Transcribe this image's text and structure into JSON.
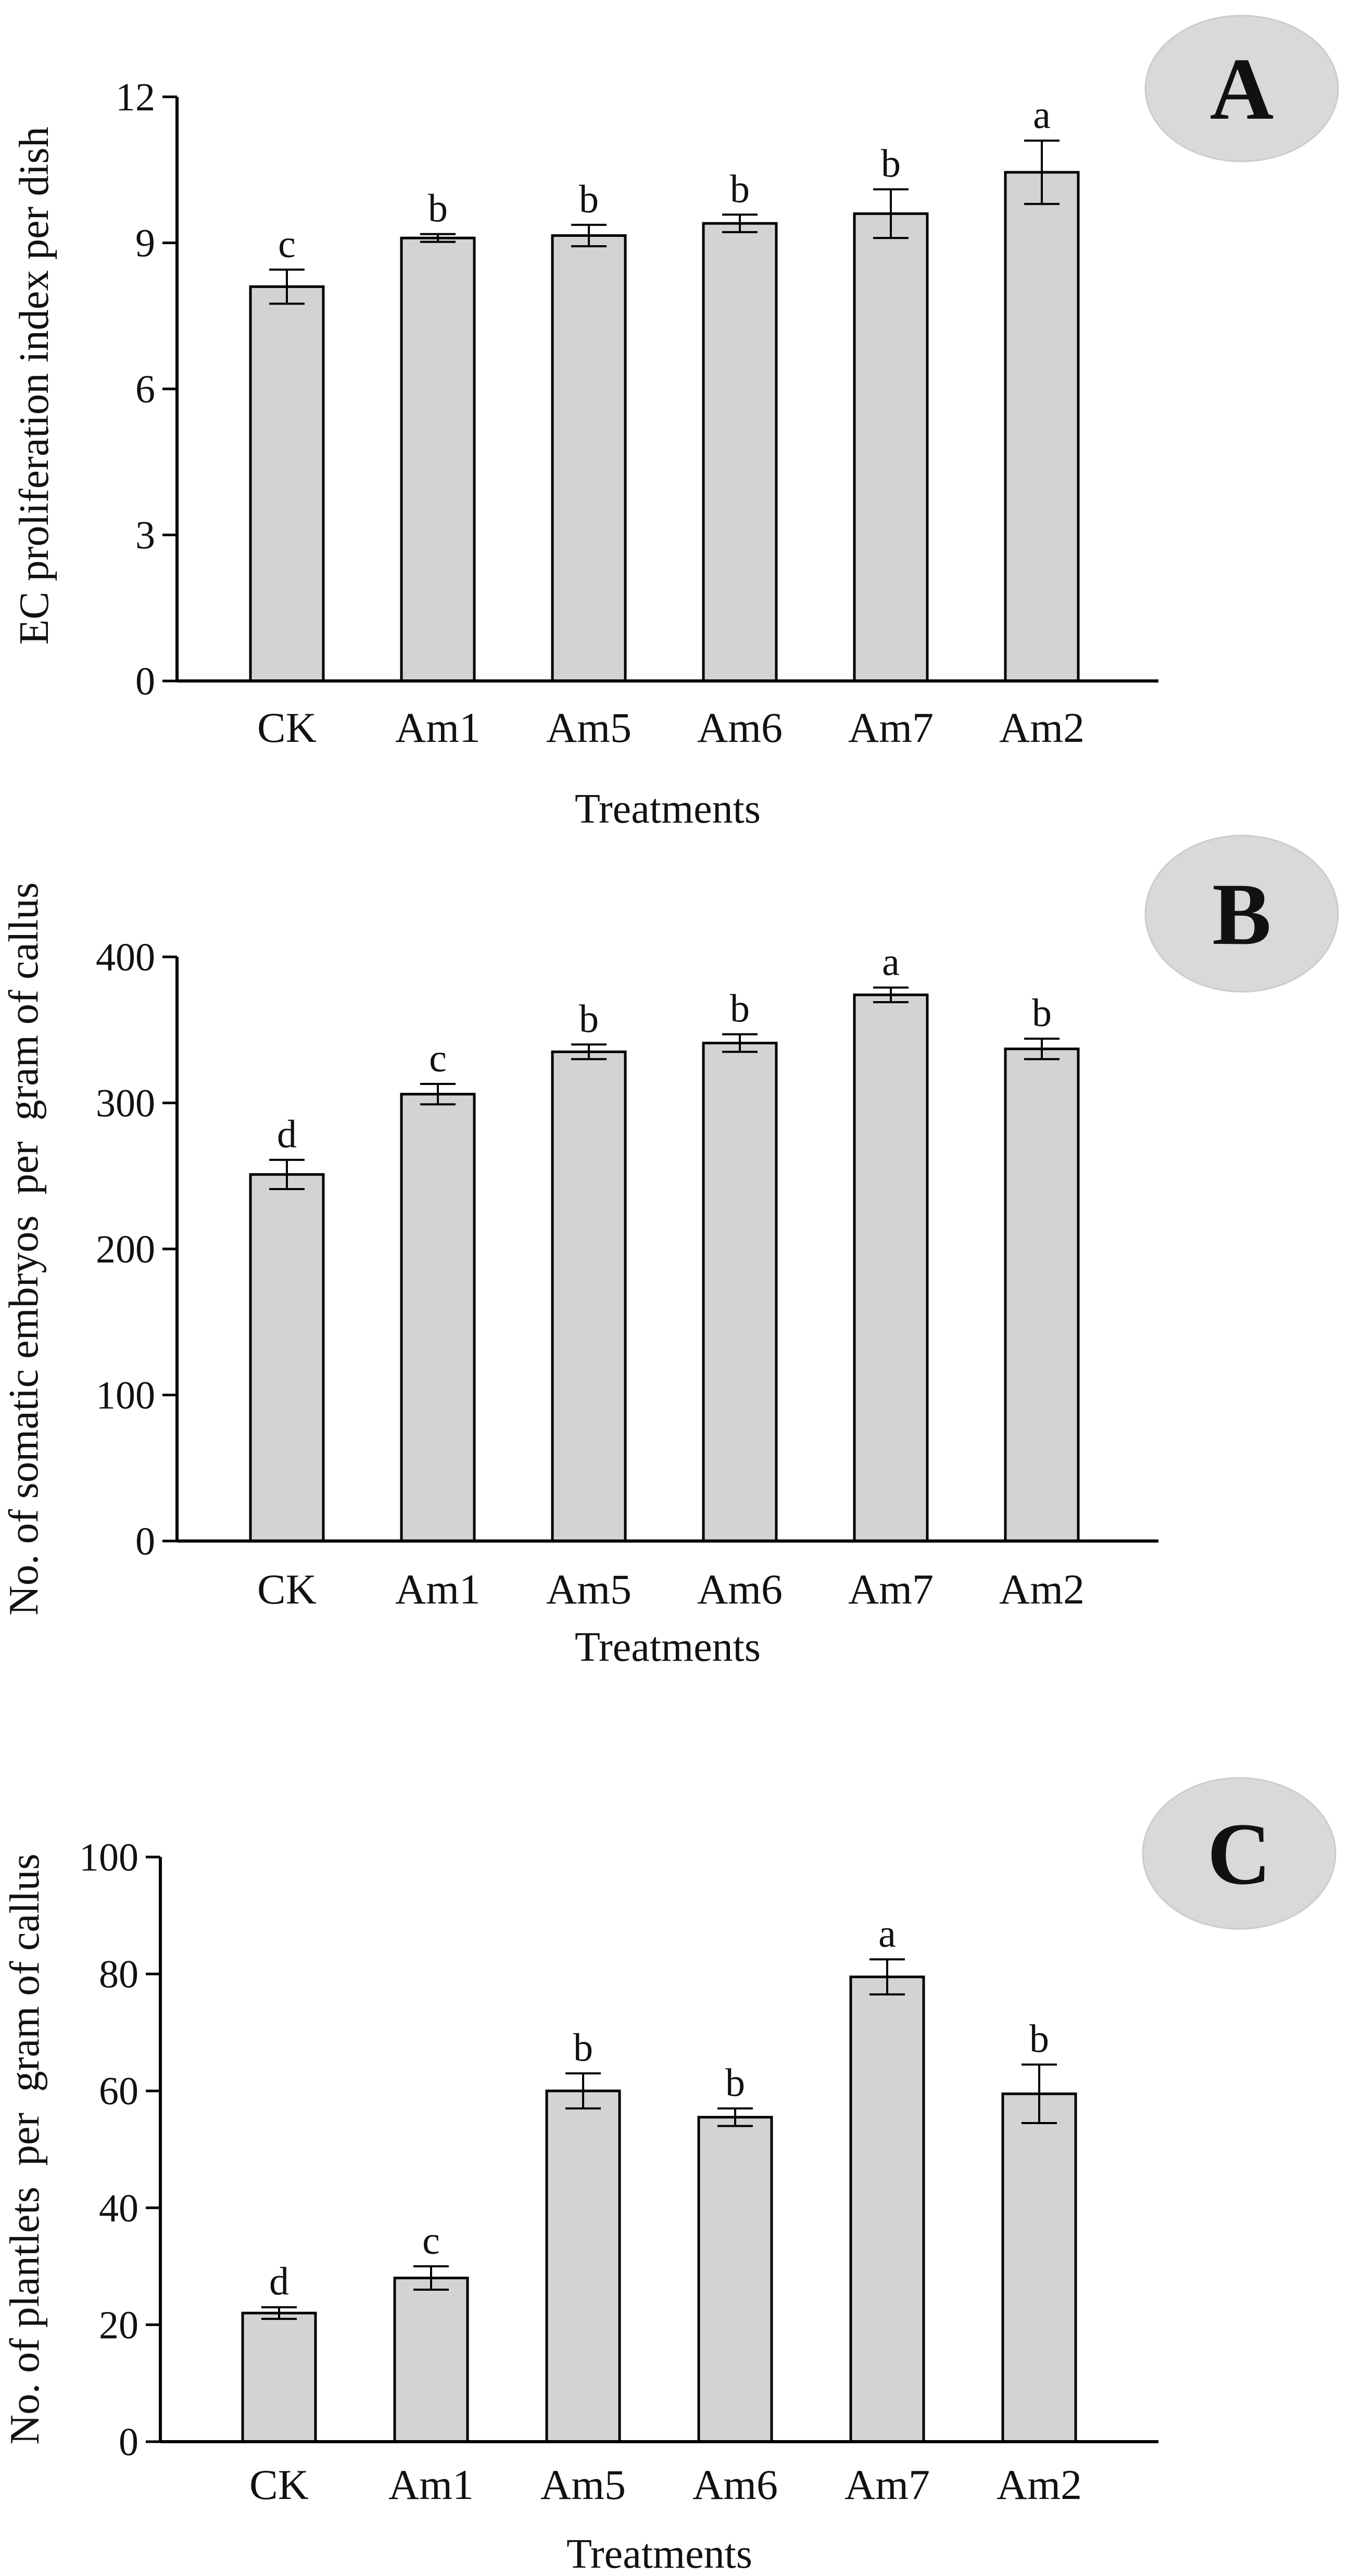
{
  "chart_data": [
    {
      "type": "bar",
      "panel_label": "A",
      "title": "",
      "xlabel": "Treatments",
      "ylabel": "EC proliferation index per dish",
      "ylim": [
        0,
        12
      ],
      "yticks": [
        0,
        3,
        6,
        9,
        12
      ],
      "categories": [
        "CK",
        "Am1",
        "Am5",
        "Am6",
        "Am7",
        "Am2"
      ],
      "values": [
        8.1,
        9.1,
        9.15,
        9.4,
        9.6,
        10.45
      ],
      "errors": [
        0.35,
        0.08,
        0.22,
        0.18,
        0.5,
        0.65
      ],
      "significance": [
        "c",
        "b",
        "b",
        "b",
        "b",
        "a"
      ],
      "bar_color": "#d3d3d3",
      "badge_color": "#d9d9d9"
    },
    {
      "type": "bar",
      "panel_label": "B",
      "title": "",
      "xlabel": "Treatments",
      "ylabel": "No. of somatic embryos  per  gram of callus",
      "ylim": [
        0,
        400
      ],
      "yticks": [
        0,
        100,
        200,
        300,
        400
      ],
      "categories": [
        "CK",
        "Am1",
        "Am5",
        "Am6",
        "Am7",
        "Am2"
      ],
      "values": [
        251,
        306,
        335,
        341,
        374,
        337
      ],
      "errors": [
        10,
        7,
        5,
        6,
        5,
        7
      ],
      "significance": [
        "d",
        "c",
        "b",
        "b",
        "a",
        "b"
      ],
      "bar_color": "#d3d3d3",
      "badge_color": "#d9d9d9"
    },
    {
      "type": "bar",
      "panel_label": "C",
      "title": "",
      "xlabel": "Treatments",
      "ylabel": "No. of plantlets  per  gram of callus",
      "ylim": [
        0,
        100
      ],
      "yticks": [
        0,
        20,
        40,
        60,
        80,
        100
      ],
      "categories": [
        "CK",
        "Am1",
        "Am5",
        "Am6",
        "Am7",
        "Am2"
      ],
      "values": [
        22,
        28,
        60,
        55.5,
        79.5,
        59.5
      ],
      "errors": [
        1.0,
        2.0,
        3.0,
        1.5,
        3.0,
        5.0
      ],
      "significance": [
        "d",
        "c",
        "b",
        "b",
        "a",
        "b"
      ],
      "bar_color": "#d3d3d3",
      "badge_color": "#d9d9d9"
    }
  ]
}
